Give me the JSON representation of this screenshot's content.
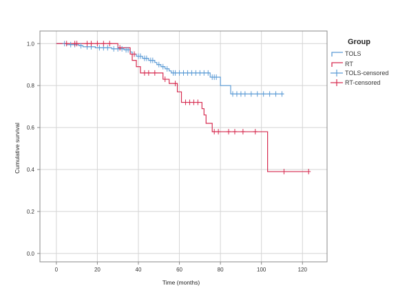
{
  "chart_data": {
    "type": "line",
    "xlabel": "Time (months)",
    "ylabel": "Cumulative survival",
    "xlim": [
      -8,
      132
    ],
    "ylim": [
      -0.04,
      1.06
    ],
    "xticks": [
      "0",
      "20",
      "40",
      "60",
      "80",
      "100",
      "120"
    ],
    "yticks": [
      "0.0",
      "0.2",
      "0.4",
      "0.6",
      "0.8",
      "1.0"
    ],
    "grid": true,
    "legend": {
      "title": "Group",
      "position": "top-right",
      "entries": [
        "TOLS",
        "RT",
        "TOLS-censored",
        "RT-censored"
      ]
    },
    "colors": {
      "TOLS": "#5b9bd5",
      "RT": "#d6294e"
    },
    "series": [
      {
        "name": "TOLS",
        "steps": [
          [
            0,
            1.0
          ],
          [
            5,
            0.995
          ],
          [
            11,
            0.99
          ],
          [
            13,
            0.985
          ],
          [
            19,
            0.98
          ],
          [
            27,
            0.975
          ],
          [
            33,
            0.97
          ],
          [
            36,
            0.96
          ],
          [
            37,
            0.95
          ],
          [
            39,
            0.94
          ],
          [
            42,
            0.93
          ],
          [
            45,
            0.92
          ],
          [
            48,
            0.91
          ],
          [
            49,
            0.9
          ],
          [
            51,
            0.89
          ],
          [
            53,
            0.88
          ],
          [
            55,
            0.87
          ],
          [
            56,
            0.86
          ],
          [
            75,
            0.84
          ],
          [
            80,
            0.8
          ],
          [
            85,
            0.76
          ],
          [
            111,
            0.76
          ]
        ],
        "censored": [
          [
            4,
            1.0
          ],
          [
            7,
            0.995
          ],
          [
            9,
            0.995
          ],
          [
            12,
            0.99
          ],
          [
            15,
            0.985
          ],
          [
            17,
            0.985
          ],
          [
            21,
            0.98
          ],
          [
            23,
            0.98
          ],
          [
            25,
            0.98
          ],
          [
            28,
            0.975
          ],
          [
            30,
            0.975
          ],
          [
            32,
            0.975
          ],
          [
            34,
            0.97
          ],
          [
            35,
            0.97
          ],
          [
            38,
            0.95
          ],
          [
            40,
            0.94
          ],
          [
            41,
            0.94
          ],
          [
            43,
            0.93
          ],
          [
            44,
            0.93
          ],
          [
            46,
            0.92
          ],
          [
            47,
            0.92
          ],
          [
            50,
            0.9
          ],
          [
            52,
            0.89
          ],
          [
            54,
            0.88
          ],
          [
            57,
            0.86
          ],
          [
            58,
            0.86
          ],
          [
            60,
            0.86
          ],
          [
            62,
            0.86
          ],
          [
            64,
            0.86
          ],
          [
            66,
            0.86
          ],
          [
            68,
            0.86
          ],
          [
            70,
            0.86
          ],
          [
            72,
            0.86
          ],
          [
            74,
            0.86
          ],
          [
            76,
            0.84
          ],
          [
            77,
            0.84
          ],
          [
            78,
            0.84
          ],
          [
            86,
            0.76
          ],
          [
            88,
            0.76
          ],
          [
            90,
            0.76
          ],
          [
            92,
            0.76
          ],
          [
            95,
            0.76
          ],
          [
            98,
            0.76
          ],
          [
            101,
            0.76
          ],
          [
            104,
            0.76
          ],
          [
            107,
            0.76
          ],
          [
            110,
            0.76
          ]
        ]
      },
      {
        "name": "RT",
        "steps": [
          [
            0,
            1.0
          ],
          [
            30,
            0.98
          ],
          [
            36,
            0.95
          ],
          [
            37,
            0.92
          ],
          [
            39,
            0.89
          ],
          [
            41,
            0.86
          ],
          [
            52,
            0.83
          ],
          [
            55,
            0.81
          ],
          [
            59,
            0.77
          ],
          [
            61,
            0.72
          ],
          [
            71,
            0.69
          ],
          [
            72,
            0.66
          ],
          [
            73,
            0.62
          ],
          [
            76,
            0.58
          ],
          [
            103,
            0.39
          ],
          [
            123,
            0.39
          ]
        ],
        "censored": [
          [
            5,
            1.0
          ],
          [
            9,
            1.0
          ],
          [
            10,
            1.0
          ],
          [
            15,
            1.0
          ],
          [
            17,
            1.0
          ],
          [
            20,
            1.0
          ],
          [
            23,
            1.0
          ],
          [
            26,
            1.0
          ],
          [
            31,
            0.98
          ],
          [
            38,
            0.95
          ],
          [
            43,
            0.86
          ],
          [
            45,
            0.86
          ],
          [
            48,
            0.86
          ],
          [
            53,
            0.83
          ],
          [
            58,
            0.81
          ],
          [
            63,
            0.72
          ],
          [
            65,
            0.72
          ],
          [
            67,
            0.72
          ],
          [
            69,
            0.72
          ],
          [
            77,
            0.58
          ],
          [
            79,
            0.58
          ],
          [
            84,
            0.58
          ],
          [
            87,
            0.58
          ],
          [
            91,
            0.58
          ],
          [
            97,
            0.58
          ],
          [
            111,
            0.39
          ],
          [
            123,
            0.39
          ]
        ]
      }
    ]
  }
}
